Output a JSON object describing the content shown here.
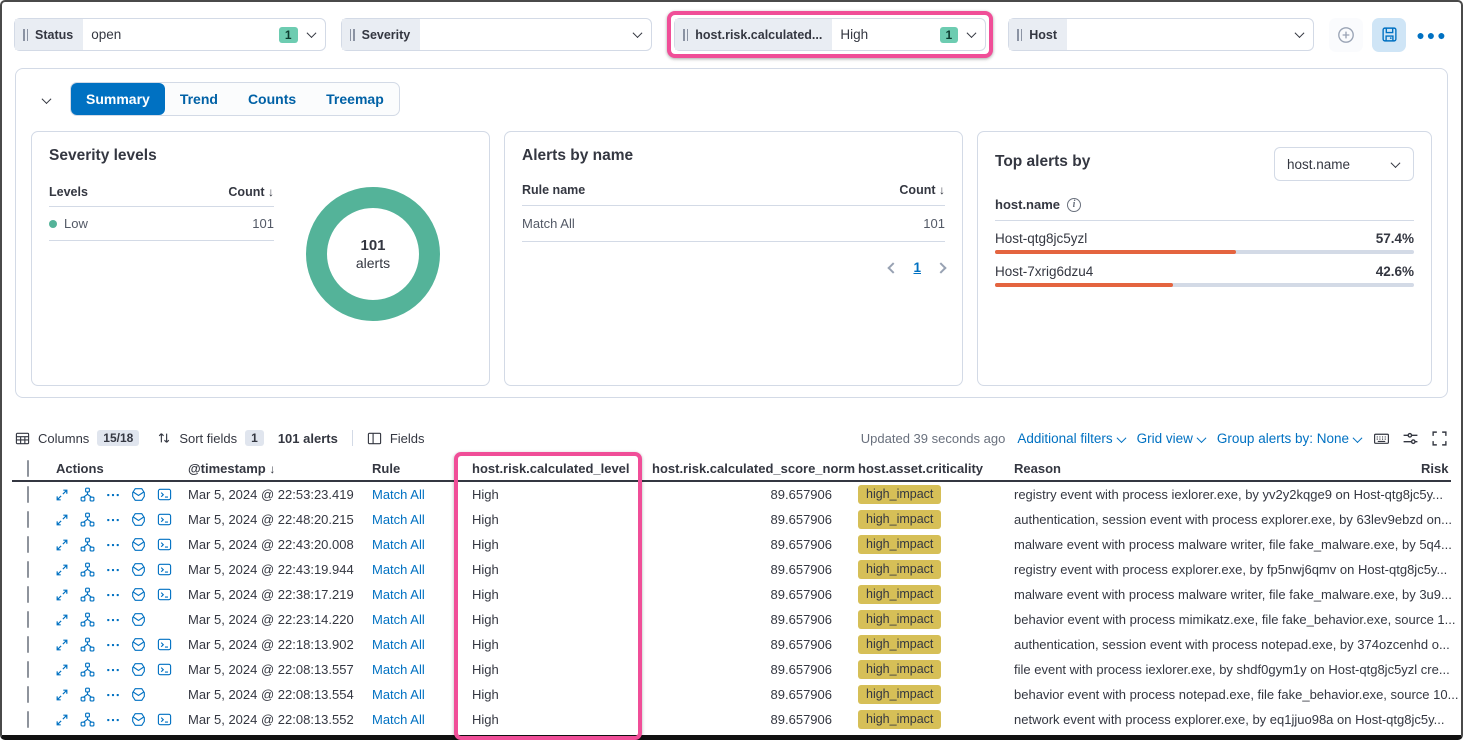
{
  "colors": {
    "primary_blue": "#0071c2",
    "accent_pink": "#f04e98",
    "donut_teal": "#54b399",
    "filter_badge_teal": "#6dccb1",
    "bar_orange": "#e4643f",
    "criticality_badge_yellow": "#d6bf57"
  },
  "filter_bar": {
    "filters": [
      {
        "label": "Status",
        "value": "open",
        "badge": "1",
        "highlighted": false
      },
      {
        "label": "Severity",
        "value": "",
        "highlighted": false
      },
      {
        "label": "host.risk.calculated...",
        "value": "High",
        "badge": "1",
        "highlighted": true
      },
      {
        "label": "Host",
        "value": "",
        "highlighted": false
      }
    ],
    "icons": [
      "add-filter-icon",
      "save-query-icon",
      "query-menu-icon"
    ]
  },
  "tabs": {
    "items": [
      "Summary",
      "Trend",
      "Counts",
      "Treemap"
    ],
    "active": "Summary"
  },
  "severity_panel": {
    "title": "Severity levels",
    "col_levels": "Levels",
    "col_count": "Count",
    "sort_indicator": "↓",
    "rows": [
      {
        "level": "Low",
        "count": "101"
      }
    ],
    "donut": {
      "value": "101",
      "label": "alerts"
    },
    "chart": {
      "type": "pie",
      "categories": [
        "Low"
      ],
      "values": [
        101
      ],
      "total_label": "101 alerts"
    }
  },
  "alerts_by_name": {
    "title": "Alerts by name",
    "col_rule": "Rule name",
    "col_count": "Count",
    "sort_indicator": "↓",
    "rows": [
      {
        "rule": "Match All",
        "count": "101"
      }
    ],
    "page": "1"
  },
  "top_alerts": {
    "title": "Top alerts by",
    "selector_value": "host.name",
    "field_label": "host.name",
    "bars": [
      {
        "name": "Host-qtg8jc5yzl",
        "pct": "57.4%",
        "value": 57.4
      },
      {
        "name": "Host-7xrig6dzu4",
        "pct": "42.6%",
        "value": 42.6
      }
    ],
    "chart": {
      "type": "bar",
      "categories": [
        "Host-qtg8jc5yzl",
        "Host-7xrig6dzu4"
      ],
      "values": [
        57.4,
        42.6
      ],
      "unit": "%"
    }
  },
  "toolbar": {
    "columns_label": "Columns",
    "columns_badge": "15/18",
    "sort_label": "Sort fields",
    "sort_badge": "1",
    "alerts_count": "101 alerts",
    "fields_label": "Fields",
    "updated": "Updated 39 seconds ago",
    "additional_filters": "Additional filters",
    "grid_view": "Grid view",
    "group_by": "Group alerts by: None",
    "right_icons": [
      "keyboard-icon",
      "view-controls-icon",
      "fullscreen-icon"
    ]
  },
  "table": {
    "headers": {
      "actions": "Actions",
      "timestamp": "@timestamp",
      "timestamp_sort": "↓",
      "rule": "Rule",
      "level": "host.risk.calculated_level",
      "score": "host.risk.calculated_score_norm",
      "criticality": "host.asset.criticality",
      "reason": "Reason",
      "risk": "Risk"
    },
    "row_action_icons": [
      "expand-icon",
      "analyze-event-icon",
      "more-actions-icon",
      "timeline-icon",
      "session-view-icon"
    ],
    "rows": [
      {
        "timestamp": "Mar 5, 2024 @ 22:53:23.419",
        "rule": "Match All",
        "level": "High",
        "score": "89.657906",
        "criticality": "high_impact",
        "reason": "registry event with process iexlorer.exe, by yv2y2kqge9 on Host-qtg8jc5y...",
        "session_icon": true
      },
      {
        "timestamp": "Mar 5, 2024 @ 22:48:20.215",
        "rule": "Match All",
        "level": "High",
        "score": "89.657906",
        "criticality": "high_impact",
        "reason": "authentication, session event with process explorer.exe, by 63lev9ebzd on...",
        "session_icon": true
      },
      {
        "timestamp": "Mar 5, 2024 @ 22:43:20.008",
        "rule": "Match All",
        "level": "High",
        "score": "89.657906",
        "criticality": "high_impact",
        "reason": "malware event with process malware writer, file fake_malware.exe, by 5q4...",
        "session_icon": true
      },
      {
        "timestamp": "Mar 5, 2024 @ 22:43:19.944",
        "rule": "Match All",
        "level": "High",
        "score": "89.657906",
        "criticality": "high_impact",
        "reason": "registry event with process explorer.exe, by fp5nwj6qmv on Host-qtg8jc5y...",
        "session_icon": true
      },
      {
        "timestamp": "Mar 5, 2024 @ 22:38:17.219",
        "rule": "Match All",
        "level": "High",
        "score": "89.657906",
        "criticality": "high_impact",
        "reason": "malware event with process malware writer, file fake_malware.exe, by 3u9...",
        "session_icon": true
      },
      {
        "timestamp": "Mar 5, 2024 @ 22:23:14.220",
        "rule": "Match All",
        "level": "High",
        "score": "89.657906",
        "criticality": "high_impact",
        "reason": "behavior event with process mimikatz.exe, file fake_behavior.exe, source 1...",
        "session_icon": false
      },
      {
        "timestamp": "Mar 5, 2024 @ 22:18:13.902",
        "rule": "Match All",
        "level": "High",
        "score": "89.657906",
        "criticality": "high_impact",
        "reason": "authentication, session event with process notepad.exe, by 374ozcenhd o...",
        "session_icon": true
      },
      {
        "timestamp": "Mar 5, 2024 @ 22:08:13.557",
        "rule": "Match All",
        "level": "High",
        "score": "89.657906",
        "criticality": "high_impact",
        "reason": "file event with process iexlorer.exe, by shdf0gym1y on Host-qtg8jc5yzl cre...",
        "session_icon": true
      },
      {
        "timestamp": "Mar 5, 2024 @ 22:08:13.554",
        "rule": "Match All",
        "level": "High",
        "score": "89.657906",
        "criticality": "high_impact",
        "reason": "behavior event with process notepad.exe, file fake_behavior.exe, source 10...",
        "session_icon": false
      },
      {
        "timestamp": "Mar 5, 2024 @ 22:08:13.552",
        "rule": "Match All",
        "level": "High",
        "score": "89.657906",
        "criticality": "high_impact",
        "reason": "network event with process explorer.exe, by eq1jjuo98a on Host-qtg8jc5y...",
        "session_icon": true
      }
    ]
  }
}
